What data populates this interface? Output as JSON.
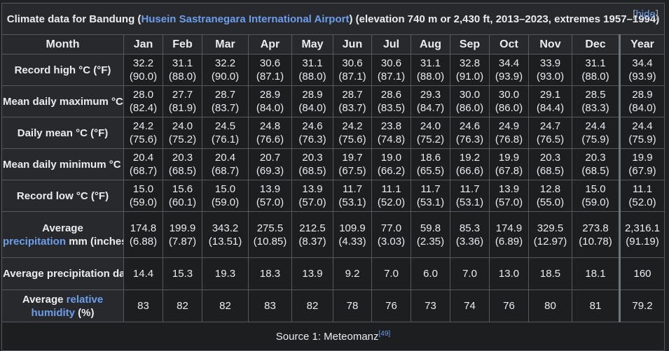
{
  "title": {
    "prefix": "Climate data for Bandung (",
    "link": "Husein Sastranegara International Airport",
    "suffix": ") (elevation 740 m or 2,430 ft, 2013–2023, extremes 1957–1994)",
    "hide_open": "[",
    "hide_label": "hide",
    "hide_close": "]"
  },
  "header": {
    "month_label": "Month",
    "months": [
      "Jan",
      "Feb",
      "Mar",
      "Apr",
      "May",
      "Jun",
      "Jul",
      "Aug",
      "Sep",
      "Oct",
      "Nov",
      "Dec",
      "Year"
    ]
  },
  "rows": [
    {
      "id": "record-high",
      "label": "Record high °C (°F)",
      "c": [
        "32.2",
        "31.1",
        "32.2",
        "30.6",
        "31.1",
        "30.6",
        "30.6",
        "31.1",
        "32.8",
        "34.4",
        "33.9",
        "31.1",
        "34.4"
      ],
      "f": [
        "(90.0)",
        "(88.0)",
        "(90.0)",
        "(87.1)",
        "(88.0)",
        "(87.1)",
        "(87.1)",
        "(88.0)",
        "(91.0)",
        "(93.9)",
        "(93.0)",
        "(88.0)",
        "(93.9)"
      ]
    },
    {
      "id": "mean-daily-max",
      "label": "Mean daily maximum °C (°F)",
      "c": [
        "28.0",
        "27.7",
        "28.7",
        "28.9",
        "28.9",
        "28.7",
        "28.6",
        "29.3",
        "30.0",
        "30.0",
        "29.1",
        "28.5",
        "28.9"
      ],
      "f": [
        "(82.4)",
        "(81.9)",
        "(83.7)",
        "(84.0)",
        "(84.0)",
        "(83.7)",
        "(83.5)",
        "(84.7)",
        "(86.0)",
        "(86.0)",
        "(84.4)",
        "(83.3)",
        "(84.0)"
      ]
    },
    {
      "id": "daily-mean",
      "label": "Daily mean °C (°F)",
      "c": [
        "24.2",
        "24.0",
        "24.5",
        "24.8",
        "24.6",
        "24.2",
        "23.8",
        "24.0",
        "24.6",
        "24.9",
        "24.7",
        "24.4",
        "24.4"
      ],
      "f": [
        "(75.6)",
        "(75.2)",
        "(76.1)",
        "(76.6)",
        "(76.3)",
        "(75.6)",
        "(74.8)",
        "(75.2)",
        "(76.3)",
        "(76.8)",
        "(76.5)",
        "(75.9)",
        "(75.9)"
      ]
    },
    {
      "id": "mean-daily-min",
      "label": "Mean daily minimum °C (°F)",
      "c": [
        "20.4",
        "20.3",
        "20.4",
        "20.7",
        "20.3",
        "19.7",
        "19.0",
        "18.6",
        "19.2",
        "19.9",
        "20.3",
        "20.3",
        "19.9"
      ],
      "f": [
        "(68.7)",
        "(68.5)",
        "(68.7)",
        "(69.3)",
        "(68.5)",
        "(67.5)",
        "(66.2)",
        "(65.5)",
        "(66.6)",
        "(67.8)",
        "(68.5)",
        "(68.5)",
        "(67.9)"
      ]
    },
    {
      "id": "record-low",
      "label": "Record low °C (°F)",
      "c": [
        "15.0",
        "15.6",
        "15.0",
        "13.9",
        "13.9",
        "11.7",
        "11.1",
        "11.7",
        "11.7",
        "13.9",
        "12.8",
        "15.0",
        "11.1"
      ],
      "f": [
        "(59.0)",
        "(60.1)",
        "(59.0)",
        "(57.0)",
        "(57.0)",
        "(53.1)",
        "(52.0)",
        "(53.1)",
        "(53.1)",
        "(57.0)",
        "(55.0)",
        "(59.0)",
        "(52.0)"
      ]
    }
  ],
  "precip": {
    "label_a": "Average",
    "label_link": "precipitation",
    "label_b": "mm (inches)",
    "mm": [
      "174.8",
      "199.9",
      "343.2",
      "275.5",
      "212.5",
      "109.9",
      "77.0",
      "59.8",
      "85.3",
      "174.9",
      "329.5",
      "273.8",
      "2,316.1"
    ],
    "in": [
      "(6.88)",
      "(7.87)",
      "(13.51)",
      "(10.85)",
      "(8.37)",
      "(4.33)",
      "(3.03)",
      "(2.35)",
      "(3.36)",
      "(6.89)",
      "(12.97)",
      "(10.78)",
      "(91.19)"
    ]
  },
  "precip_days": {
    "label": "Average precipitation days",
    "values": [
      "14.4",
      "15.3",
      "19.3",
      "18.3",
      "13.9",
      "9.2",
      "7.0",
      "6.0",
      "7.0",
      "13.0",
      "18.5",
      "18.1",
      "160"
    ]
  },
  "humidity": {
    "label_a": "Average",
    "label_link_1": "relative",
    "label_link_2": "humidity",
    "label_b": "(%)",
    "values": [
      "83",
      "82",
      "82",
      "83",
      "82",
      "78",
      "76",
      "73",
      "74",
      "76",
      "80",
      "81",
      "79.2"
    ]
  },
  "source": {
    "text": "Source 1: Meteomanz",
    "ref": "[49]"
  }
}
